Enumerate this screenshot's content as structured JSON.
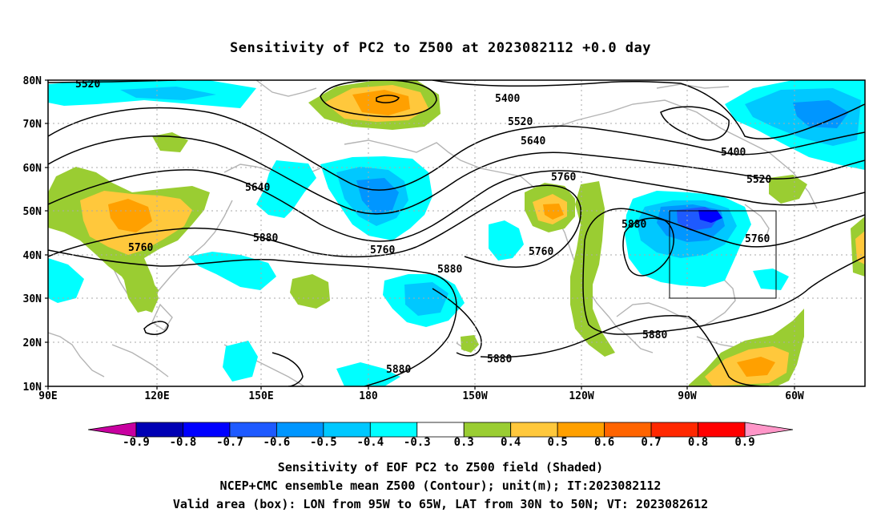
{
  "title": "Sensitivity of PC2 to Z500 at 2023082112 +0.0 day",
  "lat_labels": [
    "80N",
    "70N",
    "60N",
    "50N",
    "40N",
    "30N",
    "20N",
    "10N"
  ],
  "lon_labels": [
    "90E",
    "120E",
    "150E",
    "180",
    "150W",
    "120W",
    "90W",
    "60W"
  ],
  "contour_labels": [
    "5520",
    "5400",
    "5520",
    "5640",
    "5640",
    "5760",
    "5880",
    "5760",
    "5760",
    "5880",
    "5880",
    "5880",
    "5400",
    "5520",
    "5760",
    "5880",
    "5760",
    "5880"
  ],
  "colorbar": {
    "labels": [
      "-0.9",
      "-0.8",
      "-0.7",
      "-0.6",
      "-0.5",
      "-0.4",
      "-0.3",
      "0.3",
      "0.4",
      "0.5",
      "0.6",
      "0.7",
      "0.8",
      "0.9"
    ],
    "colors": [
      "#0000b4",
      "#0000ff",
      "#1e5aff",
      "#0096ff",
      "#00c8ff",
      "#00ffff",
      "#ffffff",
      "#9acd32",
      "#ffc83c",
      "#ffa000",
      "#ff6400",
      "#ff2800",
      "#ff0000"
    ],
    "low_end_color": "#c800a0",
    "high_end_color": "#ff96c8"
  },
  "valid_box": {
    "lon_from": "95W",
    "lon_to": "65W",
    "lat_from": "30N",
    "lat_to": "50N"
  },
  "captions": [
    "Sensitivity of EOF PC2 to Z500 field (Shaded)",
    "NCEP+CMC ensemble mean Z500 (Contour); unit(m); IT:2023082112",
    "Valid area (box): LON from 95W to 65W, LAT from 30N to 50N; VT: 2023082612"
  ]
}
